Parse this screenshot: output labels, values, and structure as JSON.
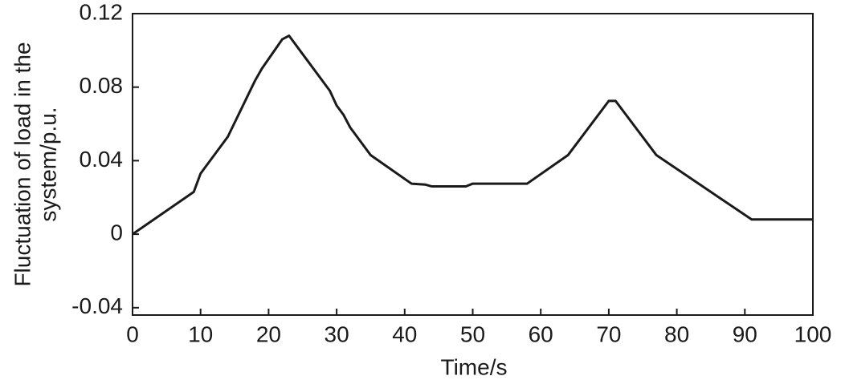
{
  "chart_data": {
    "type": "line",
    "xlabel": "Time/s",
    "ylabel": [
      "Fluctuation of load in the",
      "system/p.u."
    ],
    "x": [
      0,
      9,
      10,
      14,
      18,
      19,
      22,
      23,
      29,
      30,
      31,
      32,
      35,
      41,
      43,
      44,
      49,
      50,
      58,
      64,
      70,
      71,
      77,
      91,
      100
    ],
    "series": [
      {
        "color": "#1a1a1a",
        "values": [
          0,
          0.023,
          0.033,
          0.053,
          0.0835,
          0.09,
          0.106,
          0.108,
          0.078,
          0.07,
          0.065,
          0.058,
          0.043,
          0.0275,
          0.027,
          0.026,
          0.026,
          0.0275,
          0.0275,
          0.043,
          0.0725,
          0.0725,
          0.043,
          0.008,
          0.008
        ]
      }
    ],
    "xlim": [
      0,
      100
    ],
    "xticks": [
      0,
      10,
      20,
      30,
      40,
      50,
      60,
      70,
      80,
      90,
      100
    ],
    "ylim": [
      -0.044,
      0.12
    ],
    "yticks": [
      -0.04,
      0,
      0.04,
      0.08,
      0.12
    ],
    "grid": false
  }
}
